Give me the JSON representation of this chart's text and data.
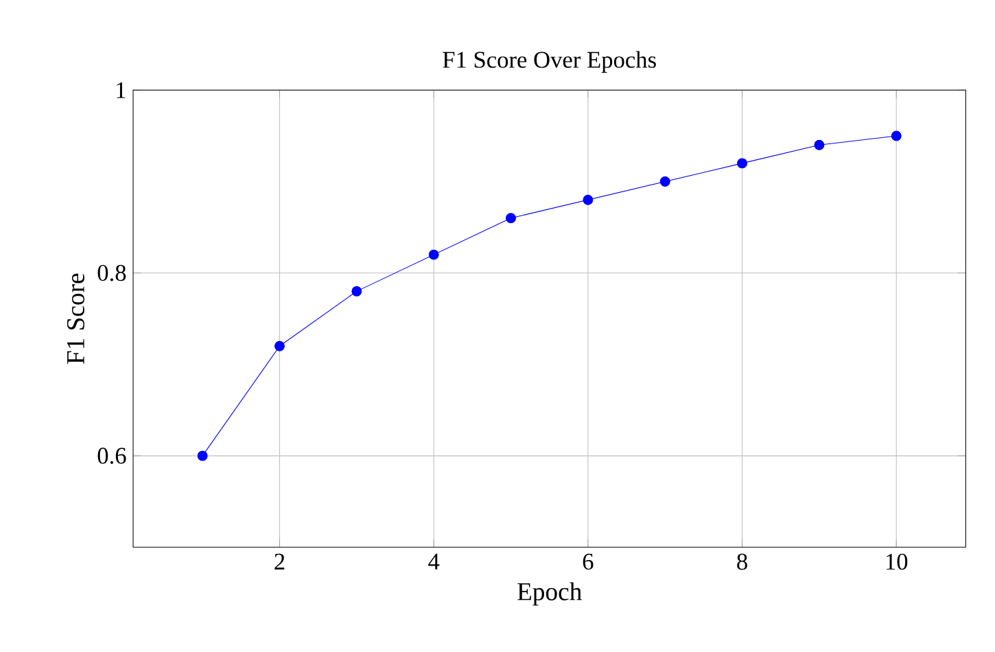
{
  "chart_data": {
    "type": "line",
    "title": "F1 Score Over Epochs",
    "xlabel": "Epoch",
    "ylabel": "F1 Score",
    "x": [
      1,
      2,
      3,
      4,
      5,
      6,
      7,
      8,
      9,
      10
    ],
    "series": [
      {
        "color": "#0000ff",
        "values": [
          0.6,
          0.72,
          0.78,
          0.82,
          0.86,
          0.88,
          0.9,
          0.92,
          0.94,
          0.95
        ]
      }
    ],
    "xlim": [
      0.1,
      10.9
    ],
    "ylim": [
      0.5,
      1
    ],
    "xticks": [
      2,
      4,
      6,
      8,
      10
    ],
    "yticks": [
      0.6,
      0.8,
      1
    ],
    "grid": true,
    "marker": "circle",
    "line_style": "solid"
  }
}
